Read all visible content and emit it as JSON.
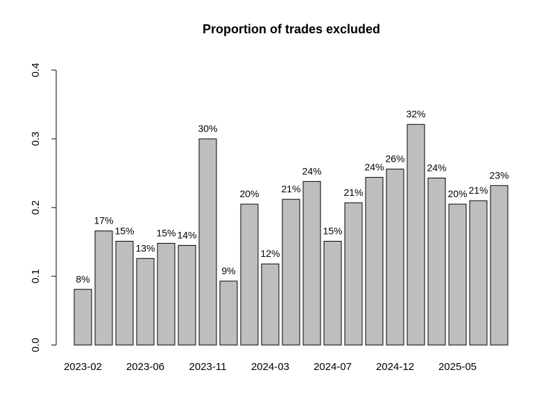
{
  "chart_data": {
    "type": "bar",
    "title": "Proportion of trades excluded",
    "xlabel": "",
    "ylabel": "",
    "ylim": [
      0,
      0.4
    ],
    "yticks": [
      "0.0",
      "0.1",
      "0.2",
      "0.3",
      "0.4"
    ],
    "xtick_labels": [
      {
        "label": "2023-02",
        "bar_index": 0
      },
      {
        "label": "2023-06",
        "bar_index": 3
      },
      {
        "label": "2023-11",
        "bar_index": 6
      },
      {
        "label": "2024-03",
        "bar_index": 9
      },
      {
        "label": "2024-07",
        "bar_index": 12
      },
      {
        "label": "2024-12",
        "bar_index": 15
      },
      {
        "label": "2025-05",
        "bar_index": 18
      }
    ],
    "values": [
      0.081,
      0.166,
      0.151,
      0.126,
      0.148,
      0.145,
      0.3,
      0.093,
      0.205,
      0.118,
      0.212,
      0.238,
      0.151,
      0.207,
      0.244,
      0.256,
      0.321,
      0.243,
      0.205,
      0.21,
      0.232
    ],
    "data_labels": [
      "8%",
      "17%",
      "15%",
      "13%",
      "15%",
      "14%",
      "30%",
      "9%",
      "20%",
      "12%",
      "21%",
      "24%",
      "15%",
      "21%",
      "24%",
      "26%",
      "32%",
      "24%",
      "20%",
      "21%",
      "23%"
    ],
    "bar_color": "#bebebe",
    "bar_border_color": "#000000",
    "grid": false,
    "legend": "none"
  }
}
